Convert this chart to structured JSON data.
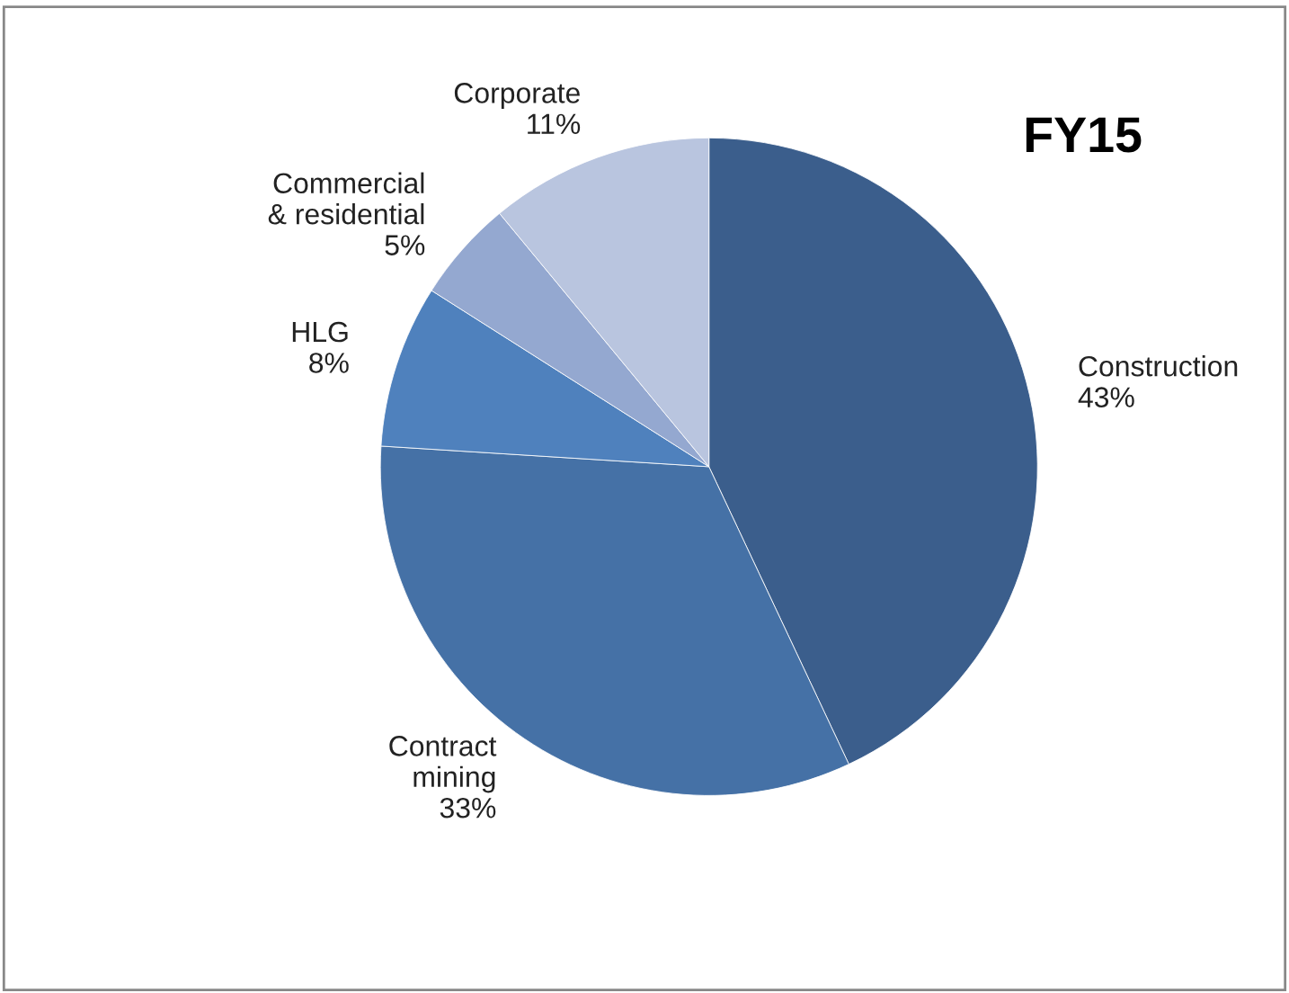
{
  "chart_data": {
    "type": "pie",
    "title": "FY15",
    "categories": [
      "Construction",
      "Contract\nmining",
      "HLG",
      "Commercial\n& residential",
      "Corporate"
    ],
    "values": [
      43,
      33,
      8,
      5,
      11
    ],
    "value_labels": [
      "43%",
      "33%",
      "8%",
      "5%",
      "11%"
    ],
    "colors": [
      "#3b5e8c",
      "#4571a6",
      "#4f81bd",
      "#94a8d0",
      "#b9c5df"
    ],
    "legend": false
  }
}
